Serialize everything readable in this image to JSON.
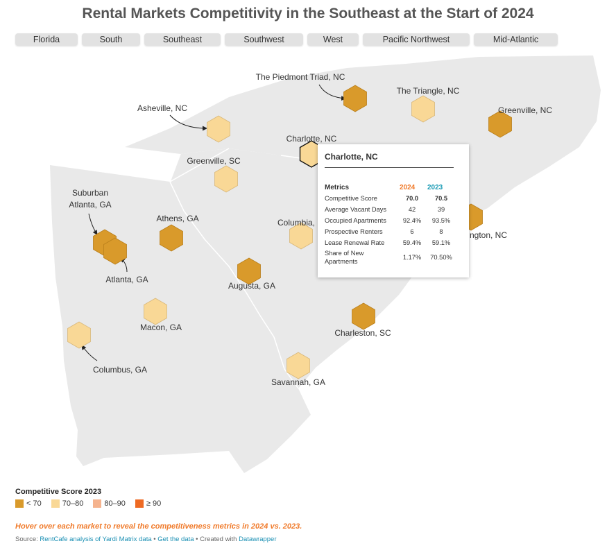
{
  "title": "Rental Markets Competitivity in the Southeast at the Start of 2024",
  "tabs": [
    "Florida",
    "South",
    "Southeast",
    "Southwest",
    "West",
    "Pacific Northwest",
    "Mid-Atlantic"
  ],
  "colors": {
    "lt70": "#d99a2b",
    "s70_80": "#f9d896",
    "s80_90": "#f5b38e",
    "ge90": "#ee6a23",
    "land": "#e8e8e8",
    "note": "#f07a2a",
    "link": "#1a8fb3"
  },
  "markets": [
    {
      "name": "The Piedmont Triad, NC",
      "category": "lt70"
    },
    {
      "name": "The Triangle, NC",
      "category": "s70_80"
    },
    {
      "name": "Greenville, NC",
      "category": "lt70"
    },
    {
      "name": "Asheville, NC",
      "category": "s70_80"
    },
    {
      "name": "Charlotte, NC",
      "category": "s70_80"
    },
    {
      "name": "Greenville, SC",
      "category": "s70_80"
    },
    {
      "name": "Suburban Atlanta, GA",
      "category": "lt70"
    },
    {
      "name": "Atlanta, GA",
      "category": "lt70"
    },
    {
      "name": "Athens, GA",
      "category": "lt70"
    },
    {
      "name": "Columbia, SC",
      "category": "s70_80"
    },
    {
      "name": "Wilmington, NC",
      "category": "lt70"
    },
    {
      "name": "Augusta, GA",
      "category": "lt70"
    },
    {
      "name": "Macon, GA",
      "category": "s70_80"
    },
    {
      "name": "Charleston, SC",
      "category": "lt70"
    },
    {
      "name": "Columbus, GA",
      "category": "s70_80"
    },
    {
      "name": "Savannah, GA",
      "category": "s70_80"
    }
  ],
  "labels": {
    "piedmont": "The Piedmont Triad, NC",
    "triangle": "The Triangle, NC",
    "greenville_nc": "Greenville, NC",
    "asheville": "Asheville, NC",
    "charlotte": "Charlotte, NC",
    "greenville_sc": "Greenville, SC",
    "suburban_atl_1": "Suburban",
    "suburban_atl_2": "Atlanta, GA",
    "athens": "Athens, GA",
    "columbia": "Columbia,",
    "wilmington": "ngton, NC",
    "atlanta": "Atlanta, GA",
    "augusta": "Augusta, GA",
    "macon": "Macon, GA",
    "charleston": "Charleston, SC",
    "columbus": "Columbus, GA",
    "savannah": "Savannah, GA"
  },
  "tooltip": {
    "title": "Charlotte, NC",
    "header": {
      "metrics": "Metrics",
      "y2024": "2024",
      "y2023": "2023"
    },
    "rows": [
      {
        "label": "Competitive Score",
        "v2024": "70.0",
        "v2023": "70.5"
      },
      {
        "label": "Average Vacant Days",
        "v2024": "42",
        "v2023": "39"
      },
      {
        "label": "Occupied Apartments",
        "v2024": "92.4%",
        "v2023": "93.5%"
      },
      {
        "label": "Prospective Renters",
        "v2024": "6",
        "v2023": "8"
      },
      {
        "label": "Lease Renewal Rate",
        "v2024": "59.4%",
        "v2023": "59.1%"
      },
      {
        "label": "Share of New Apartments",
        "v2024": "1.17%",
        "v2023": "70.50%"
      }
    ]
  },
  "legend": {
    "title": "Competitive Score 2023",
    "items": [
      "< 70",
      "70–80",
      "80–90",
      "≥ 90"
    ]
  },
  "note": "Hover over each market to reveal the competitiveness metrics in 2024 vs. 2023.",
  "source": {
    "prefix": "Source: ",
    "analysis_link": "RentCafe analysis of Yardi Matrix data",
    "sep1": " • ",
    "data_link": "Get the data",
    "sep2": " • Created with ",
    "tool_link": "Datawrapper"
  }
}
